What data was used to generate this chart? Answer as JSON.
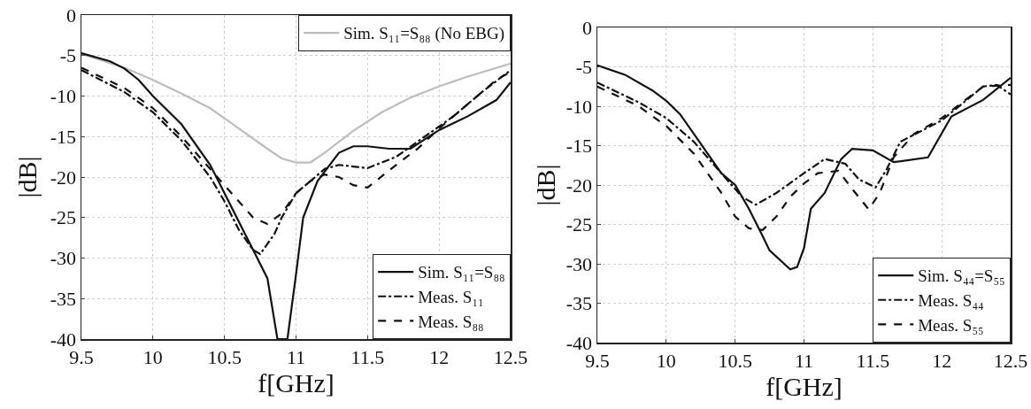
{
  "chart_data": [
    {
      "type": "line",
      "xlabel": "f[GHz]",
      "ylabel": "|dB|",
      "xlim": [
        9.5,
        12.5
      ],
      "ylim": [
        -40,
        0
      ],
      "xticks": [
        9.5,
        10,
        10.5,
        11,
        11.5,
        12,
        12.5
      ],
      "yticks": [
        -40,
        -35,
        -30,
        -25,
        -20,
        -15,
        -10,
        -5,
        0
      ],
      "grid": true,
      "legend": [
        "top right",
        "bottom right"
      ],
      "marker": "none",
      "series": [
        {
          "name": "Sim. S₁₁=S₈₈ (No EBG)",
          "color": "#bdbdbd",
          "line_style": "solid",
          "x": [
            9.5,
            9.8,
            10,
            10.2,
            10.4,
            10.6,
            10.8,
            10.9,
            11.0,
            11.1,
            11.2,
            11.4,
            11.6,
            11.8,
            12,
            12.2,
            12.5
          ],
          "values": [
            -4.8,
            -6.5,
            -8,
            -9.7,
            -11.5,
            -14,
            -16.5,
            -17.7,
            -18.2,
            -18.2,
            -17,
            -14.3,
            -12,
            -10.2,
            -8.8,
            -7.6,
            -6
          ]
        },
        {
          "name": "Sim. S₁₁=S₈₈",
          "color": "#111111",
          "line_style": "solid",
          "x": [
            9.5,
            9.7,
            9.8,
            9.9,
            10,
            10.2,
            10.4,
            10.5,
            10.6,
            10.7,
            10.8,
            10.87,
            10.94,
            11.0,
            11.05,
            11.15,
            11.3,
            11.4,
            11.5,
            11.65,
            11.8,
            12,
            12.2,
            12.4,
            12.5
          ],
          "values": [
            -4.7,
            -5.7,
            -6.6,
            -8,
            -10,
            -13.5,
            -18.5,
            -22,
            -25.5,
            -29,
            -32.5,
            -40,
            -40,
            -32,
            -25,
            -20.5,
            -17,
            -16.2,
            -16.2,
            -16.5,
            -16.5,
            -14.2,
            -12.5,
            -10.5,
            -8.3
          ]
        },
        {
          "name": "Meas. S₁₁",
          "color": "#111111",
          "line_style": "dashdot",
          "x": [
            9.5,
            9.8,
            10,
            10.2,
            10.4,
            10.5,
            10.6,
            10.7,
            10.75,
            10.85,
            10.9,
            11.0,
            11.1,
            11.2,
            11.3,
            11.5,
            11.7,
            11.9,
            12.1,
            12.3,
            12.5
          ],
          "values": [
            -6.8,
            -9.5,
            -12,
            -15.5,
            -20,
            -23,
            -26.5,
            -29,
            -29.5,
            -27,
            -25,
            -22,
            -20.5,
            -19,
            -18.5,
            -18.9,
            -17.5,
            -15,
            -12.5,
            -9.5,
            -6.8
          ]
        },
        {
          "name": "Meas. S₈₈",
          "color": "#111111",
          "line_style": "dashed",
          "x": [
            9.5,
            9.8,
            10,
            10.2,
            10.4,
            10.6,
            10.7,
            10.8,
            10.9,
            11.0,
            11.1,
            11.2,
            11.3,
            11.4,
            11.5,
            11.7,
            11.85,
            12,
            12.2,
            12.4,
            12.5
          ],
          "values": [
            -6.5,
            -9,
            -11.5,
            -15,
            -19,
            -23,
            -25,
            -25.8,
            -24.5,
            -22,
            -20.5,
            -19.7,
            -20,
            -21,
            -21.3,
            -18.5,
            -16.5,
            -14,
            -11,
            -8,
            -7
          ]
        }
      ]
    },
    {
      "type": "line",
      "xlabel": "f[GHz]",
      "ylabel": "|dB|",
      "xlim": [
        9.5,
        12.5
      ],
      "ylim": [
        -40,
        0
      ],
      "xticks": [
        9.5,
        10,
        10.5,
        11,
        11.5,
        12,
        12.5
      ],
      "yticks": [
        -40,
        -35,
        -30,
        -25,
        -20,
        -15,
        -10,
        -5,
        0
      ],
      "grid": true,
      "legend": "bottom right",
      "marker": "none",
      "series": [
        {
          "name": "Sim. S₄₄=S₅₅",
          "color": "#111111",
          "line_style": "solid",
          "x": [
            9.5,
            9.7,
            9.9,
            10,
            10.1,
            10.2,
            10.3,
            10.4,
            10.5,
            10.6,
            10.7,
            10.75,
            10.9,
            10.95,
            11.0,
            11.05,
            11.15,
            11.27,
            11.35,
            11.5,
            11.65,
            11.9,
            12.07,
            12.3,
            12.5
          ],
          "values": [
            -4.8,
            -6,
            -8,
            -9.3,
            -11,
            -13.5,
            -16,
            -18.5,
            -20,
            -23,
            -26.5,
            -28.3,
            -30.7,
            -30.4,
            -28,
            -23,
            -21,
            -16.7,
            -15.4,
            -15.6,
            -17.1,
            -16.5,
            -11.3,
            -9.2,
            -6.4
          ]
        },
        {
          "name": "Meas. S₄₄",
          "color": "#111111",
          "line_style": "dashdot",
          "x": [
            9.5,
            9.8,
            10,
            10.2,
            10.4,
            10.55,
            10.65,
            10.8,
            11.0,
            11.15,
            11.3,
            11.4,
            11.52,
            11.6,
            11.7,
            12.0,
            12.3,
            12.4,
            12.5
          ],
          "values": [
            -7,
            -9.5,
            -11.5,
            -14.5,
            -18.5,
            -21.5,
            -22.5,
            -21,
            -18.5,
            -16.7,
            -17.3,
            -19.3,
            -20.3,
            -18,
            -14.5,
            -11.8,
            -7.5,
            -7.3,
            -8.5
          ]
        },
        {
          "name": "Meas. S₅₅",
          "color": "#111111",
          "line_style": "dashed",
          "x": [
            9.5,
            9.8,
            10,
            10.2,
            10.4,
            10.5,
            10.6,
            10.7,
            10.8,
            10.9,
            11.0,
            11.1,
            11.25,
            11.35,
            11.47,
            11.55,
            11.65,
            11.8,
            12.0,
            12.3,
            12.5
          ],
          "values": [
            -7.5,
            -10,
            -12.5,
            -16,
            -21,
            -24,
            -25.5,
            -25.7,
            -24,
            -21.5,
            -19.8,
            -18.5,
            -18.2,
            -20.5,
            -23.1,
            -21,
            -16.5,
            -13.5,
            -11.5,
            -7.5,
            -7.3
          ]
        }
      ]
    }
  ]
}
